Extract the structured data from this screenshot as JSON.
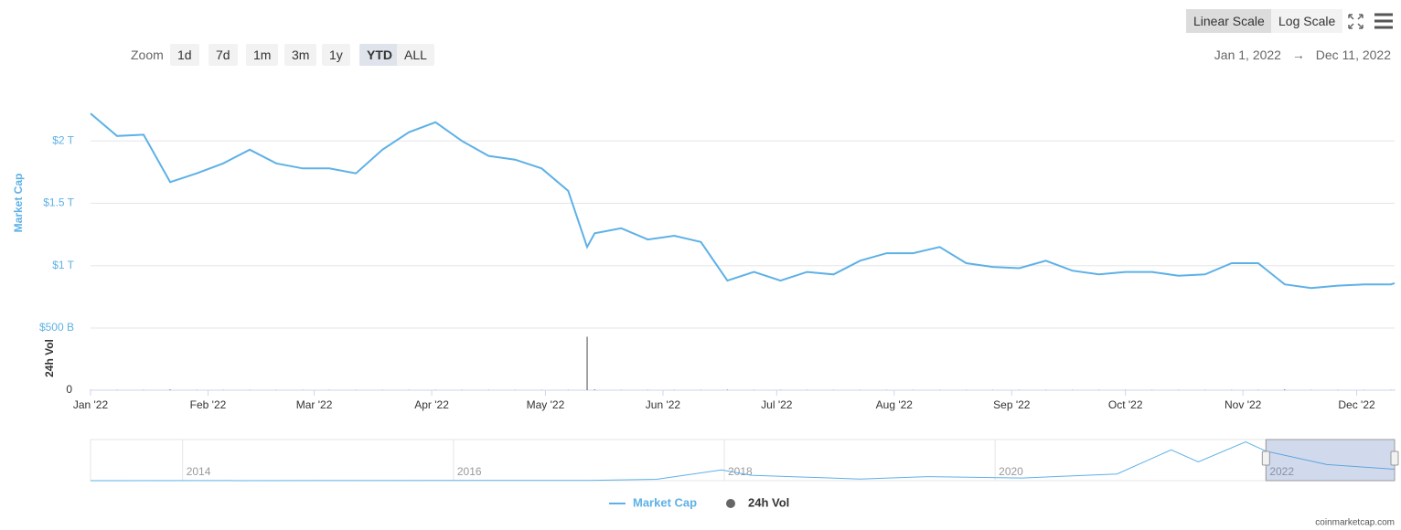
{
  "toolbar": {
    "zoom_label": "Zoom",
    "zoom_buttons": [
      "1d",
      "7d",
      "1m",
      "3m",
      "1y",
      "YTD",
      "ALL"
    ],
    "active_zoom": 5,
    "scale_buttons": [
      "Linear Scale",
      "Log Scale"
    ],
    "active_scale": 0,
    "range_from": "Jan 1, 2022",
    "range_separator": "→",
    "range_to": "Dec 11, 2022"
  },
  "credit": "coinmarketcap.com",
  "chart_data": [
    {
      "type": "line",
      "y_label": "Market Cap",
      "y2_label": "24h Vol",
      "x": [
        "2022-01-01",
        "2022-01-08",
        "2022-01-15",
        "2022-01-22",
        "2022-01-29",
        "2022-02-05",
        "2022-02-12",
        "2022-02-19",
        "2022-02-26",
        "2022-03-05",
        "2022-03-12",
        "2022-03-19",
        "2022-03-26",
        "2022-04-02",
        "2022-04-09",
        "2022-04-16",
        "2022-04-23",
        "2022-04-30",
        "2022-05-07",
        "2022-05-12",
        "2022-05-14",
        "2022-05-21",
        "2022-05-28",
        "2022-06-04",
        "2022-06-11",
        "2022-06-18",
        "2022-06-25",
        "2022-07-02",
        "2022-07-09",
        "2022-07-16",
        "2022-07-23",
        "2022-07-30",
        "2022-08-06",
        "2022-08-13",
        "2022-08-20",
        "2022-08-27",
        "2022-09-03",
        "2022-09-10",
        "2022-09-17",
        "2022-09-24",
        "2022-10-01",
        "2022-10-08",
        "2022-10-15",
        "2022-10-22",
        "2022-10-29",
        "2022-11-05",
        "2022-11-12",
        "2022-11-19",
        "2022-11-26",
        "2022-12-03",
        "2022-12-10",
        "2022-12-11"
      ],
      "series": [
        {
          "name": "Market Cap",
          "color": "#5eb1e6",
          "values": [
            2.22,
            2.04,
            2.05,
            1.67,
            1.74,
            1.82,
            1.93,
            1.82,
            1.78,
            1.78,
            1.74,
            1.93,
            2.07,
            2.15,
            2.0,
            1.88,
            1.85,
            1.78,
            1.6,
            1.15,
            1.26,
            1.3,
            1.21,
            1.24,
            1.19,
            0.88,
            0.95,
            0.88,
            0.95,
            0.93,
            1.04,
            1.1,
            1.1,
            1.15,
            1.02,
            0.99,
            0.98,
            1.04,
            0.96,
            0.93,
            0.95,
            0.95,
            0.92,
            0.93,
            1.02,
            1.02,
            0.85,
            0.82,
            0.84,
            0.85,
            0.85,
            0.86
          ]
        },
        {
          "name": "24h Vol",
          "color": "#666666",
          "axis": "y2",
          "values": [
            0.002,
            0.002,
            0.002,
            0.006,
            0.002,
            0.002,
            0.002,
            0.002,
            0.002,
            0.002,
            0.002,
            0.002,
            0.002,
            0.002,
            0.002,
            0.002,
            0.002,
            0.002,
            0.002,
            0.43,
            0.006,
            0.002,
            0.002,
            0.002,
            0.002,
            0.004,
            0.002,
            0.002,
            0.002,
            0.002,
            0.002,
            0.002,
            0.002,
            0.002,
            0.002,
            0.002,
            0.002,
            0.002,
            0.002,
            0.002,
            0.002,
            0.002,
            0.002,
            0.002,
            0.002,
            0.002,
            0.006,
            0.002,
            0.002,
            0.002,
            0.002,
            0.002
          ]
        }
      ],
      "xlim": [
        "2022-01-01",
        "2022-12-11"
      ],
      "xticks": [
        {
          "value": "2022-01-01",
          "label": "Jan '22"
        },
        {
          "value": "2022-02-01",
          "label": "Feb '22"
        },
        {
          "value": "2022-03-01",
          "label": "Mar '22"
        },
        {
          "value": "2022-04-01",
          "label": "Apr '22"
        },
        {
          "value": "2022-05-01",
          "label": "May '22"
        },
        {
          "value": "2022-06-01",
          "label": "Jun '22"
        },
        {
          "value": "2022-07-01",
          "label": "Jul '22"
        },
        {
          "value": "2022-08-01",
          "label": "Aug '22"
        },
        {
          "value": "2022-09-01",
          "label": "Sep '22"
        },
        {
          "value": "2022-10-01",
          "label": "Oct '22"
        },
        {
          "value": "2022-11-01",
          "label": "Nov '22"
        },
        {
          "value": "2022-12-01",
          "label": "Dec '22"
        }
      ],
      "ylim": [
        0.5,
        2.5
      ],
      "yticks": [
        {
          "value": 0.5,
          "label": "$500 B"
        },
        {
          "value": 1,
          "label": "$1 T"
        },
        {
          "value": 1.5,
          "label": "$1.5 T"
        },
        {
          "value": 2,
          "label": "$2 T"
        }
      ],
      "y2lim": [
        0,
        0.5
      ],
      "y2ticks": [
        0
      ],
      "grid": true,
      "legend": "bottom"
    },
    {
      "type": "area",
      "x": [
        2013.32,
        2015.0,
        2017.0,
        2017.5,
        2017.98,
        2018.2,
        2019.0,
        2019.5,
        2020.2,
        2020.9,
        2021.3,
        2021.5,
        2021.85,
        2022.0,
        2022.45,
        2022.95
      ],
      "values": [
        0.002,
        0.005,
        0.02,
        0.1,
        0.8,
        0.4,
        0.12,
        0.3,
        0.2,
        0.5,
        2.3,
        1.4,
        2.9,
        2.2,
        1.2,
        0.85
      ],
      "color": "#5eb1e6",
      "xlim": [
        2013.32,
        2022.95
      ],
      "xticks": [
        2014,
        2016,
        2018,
        2020,
        2022
      ],
      "ylim": [
        0,
        3
      ],
      "selection": [
        2022.0,
        2022.95
      ]
    }
  ]
}
